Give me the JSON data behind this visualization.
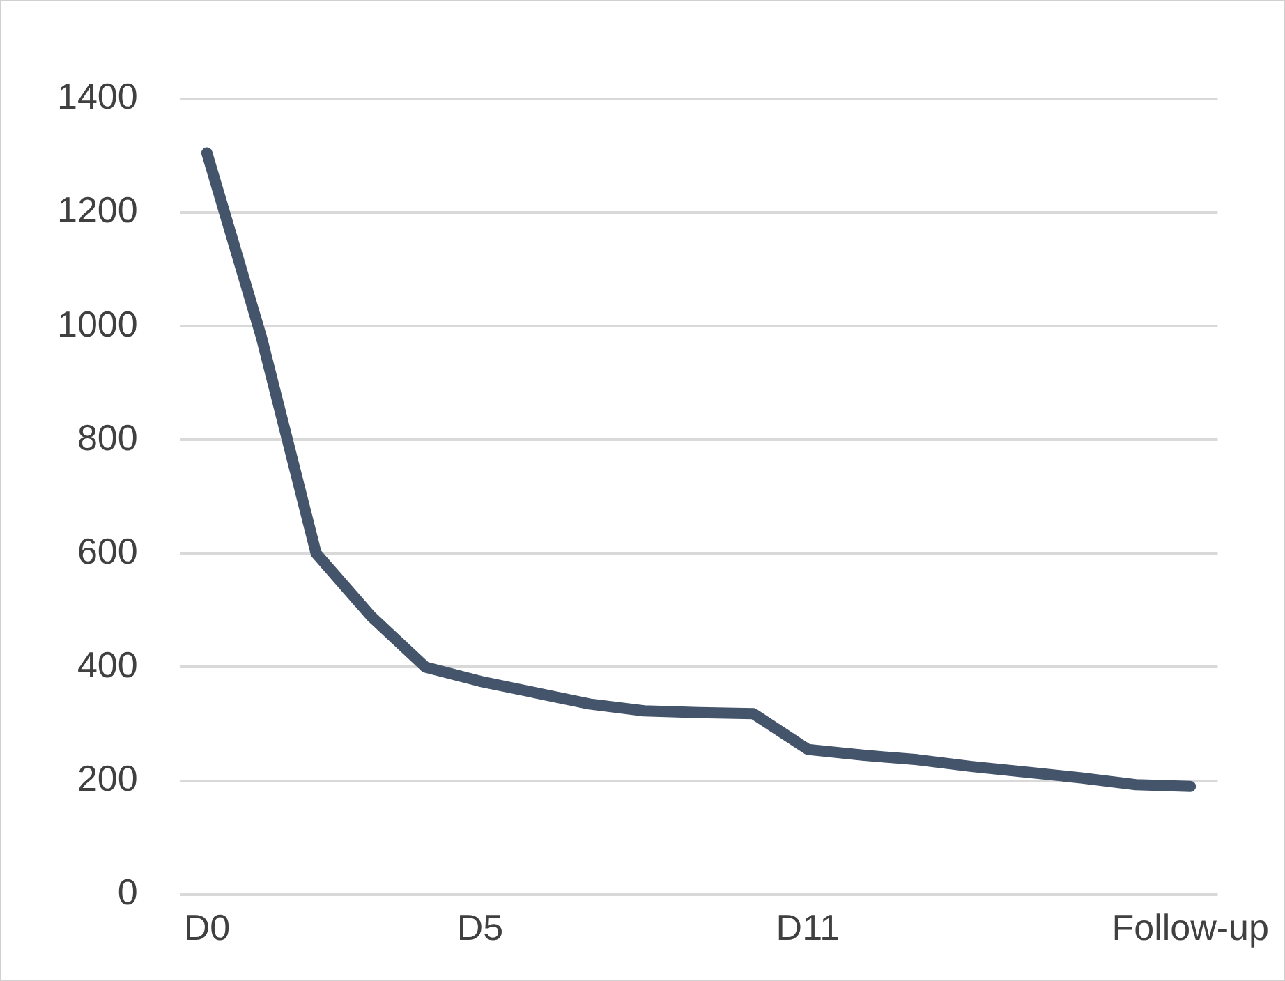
{
  "chart_data": {
    "type": "line",
    "categories": [
      "D0",
      null,
      null,
      null,
      null,
      "D5",
      null,
      null,
      null,
      null,
      null,
      "D11",
      null,
      null,
      null,
      null,
      null,
      null,
      "Follow-up"
    ],
    "series": [
      {
        "color": "#44546a",
        "values": [
          1305,
          980,
          600,
          490,
          400,
          375,
          355,
          335,
          323,
          320,
          318,
          255,
          245,
          237,
          225,
          215,
          205,
          193,
          190
        ]
      }
    ],
    "ylim": [
      0,
      1400
    ],
    "yticks": [
      0,
      200,
      400,
      600,
      800,
      1000,
      1200,
      1400
    ],
    "grid": "y",
    "legend": false,
    "marker": "none",
    "line_style": "solid"
  }
}
